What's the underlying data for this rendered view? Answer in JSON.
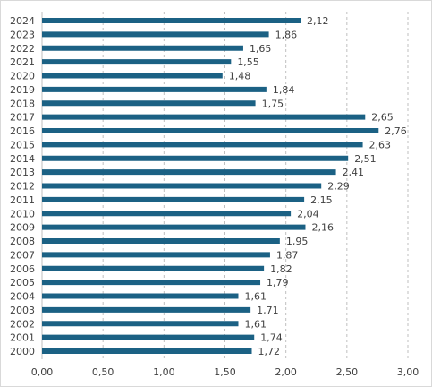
{
  "chart_data": {
    "type": "bar",
    "orientation": "horizontal",
    "categories": [
      "2024",
      "2023",
      "2022",
      "2021",
      "2020",
      "2019",
      "2018",
      "2017",
      "2016",
      "2015",
      "2014",
      "2013",
      "2012",
      "2011",
      "2010",
      "2009",
      "2008",
      "2007",
      "2006",
      "2005",
      "2004",
      "2003",
      "2002",
      "2001",
      "2000"
    ],
    "values": [
      2.12,
      1.86,
      1.65,
      1.55,
      1.48,
      1.84,
      1.75,
      2.65,
      2.76,
      2.63,
      2.51,
      2.41,
      2.29,
      2.15,
      2.04,
      2.16,
      1.95,
      1.87,
      1.82,
      1.79,
      1.61,
      1.71,
      1.61,
      1.74,
      1.72
    ],
    "value_labels": [
      "2,12",
      "1,86",
      "1,65",
      "1,55",
      "1,48",
      "1,84",
      "1,75",
      "2,65",
      "2,76",
      "2,63",
      "2,51",
      "2,41",
      "2,29",
      "2,15",
      "2,04",
      "2,16",
      "1,95",
      "1,87",
      "1,82",
      "1,79",
      "1,61",
      "1,71",
      "1,61",
      "1,74",
      "1,72"
    ],
    "xticks": [
      0,
      0.5,
      1,
      1.5,
      2,
      2.5,
      3
    ],
    "xtick_labels": [
      "0,00",
      "0,50",
      "1,00",
      "1,50",
      "2,00",
      "2,50",
      "3,00"
    ],
    "xlim": [
      0,
      3
    ],
    "title": "",
    "xlabel": "",
    "ylabel": "",
    "grid": "vertical dashed",
    "legend": "none",
    "colors": {
      "bar": "#1b6184",
      "grid": "#bfbfbf",
      "text": "#404040",
      "border": "#d9d9d9"
    }
  }
}
